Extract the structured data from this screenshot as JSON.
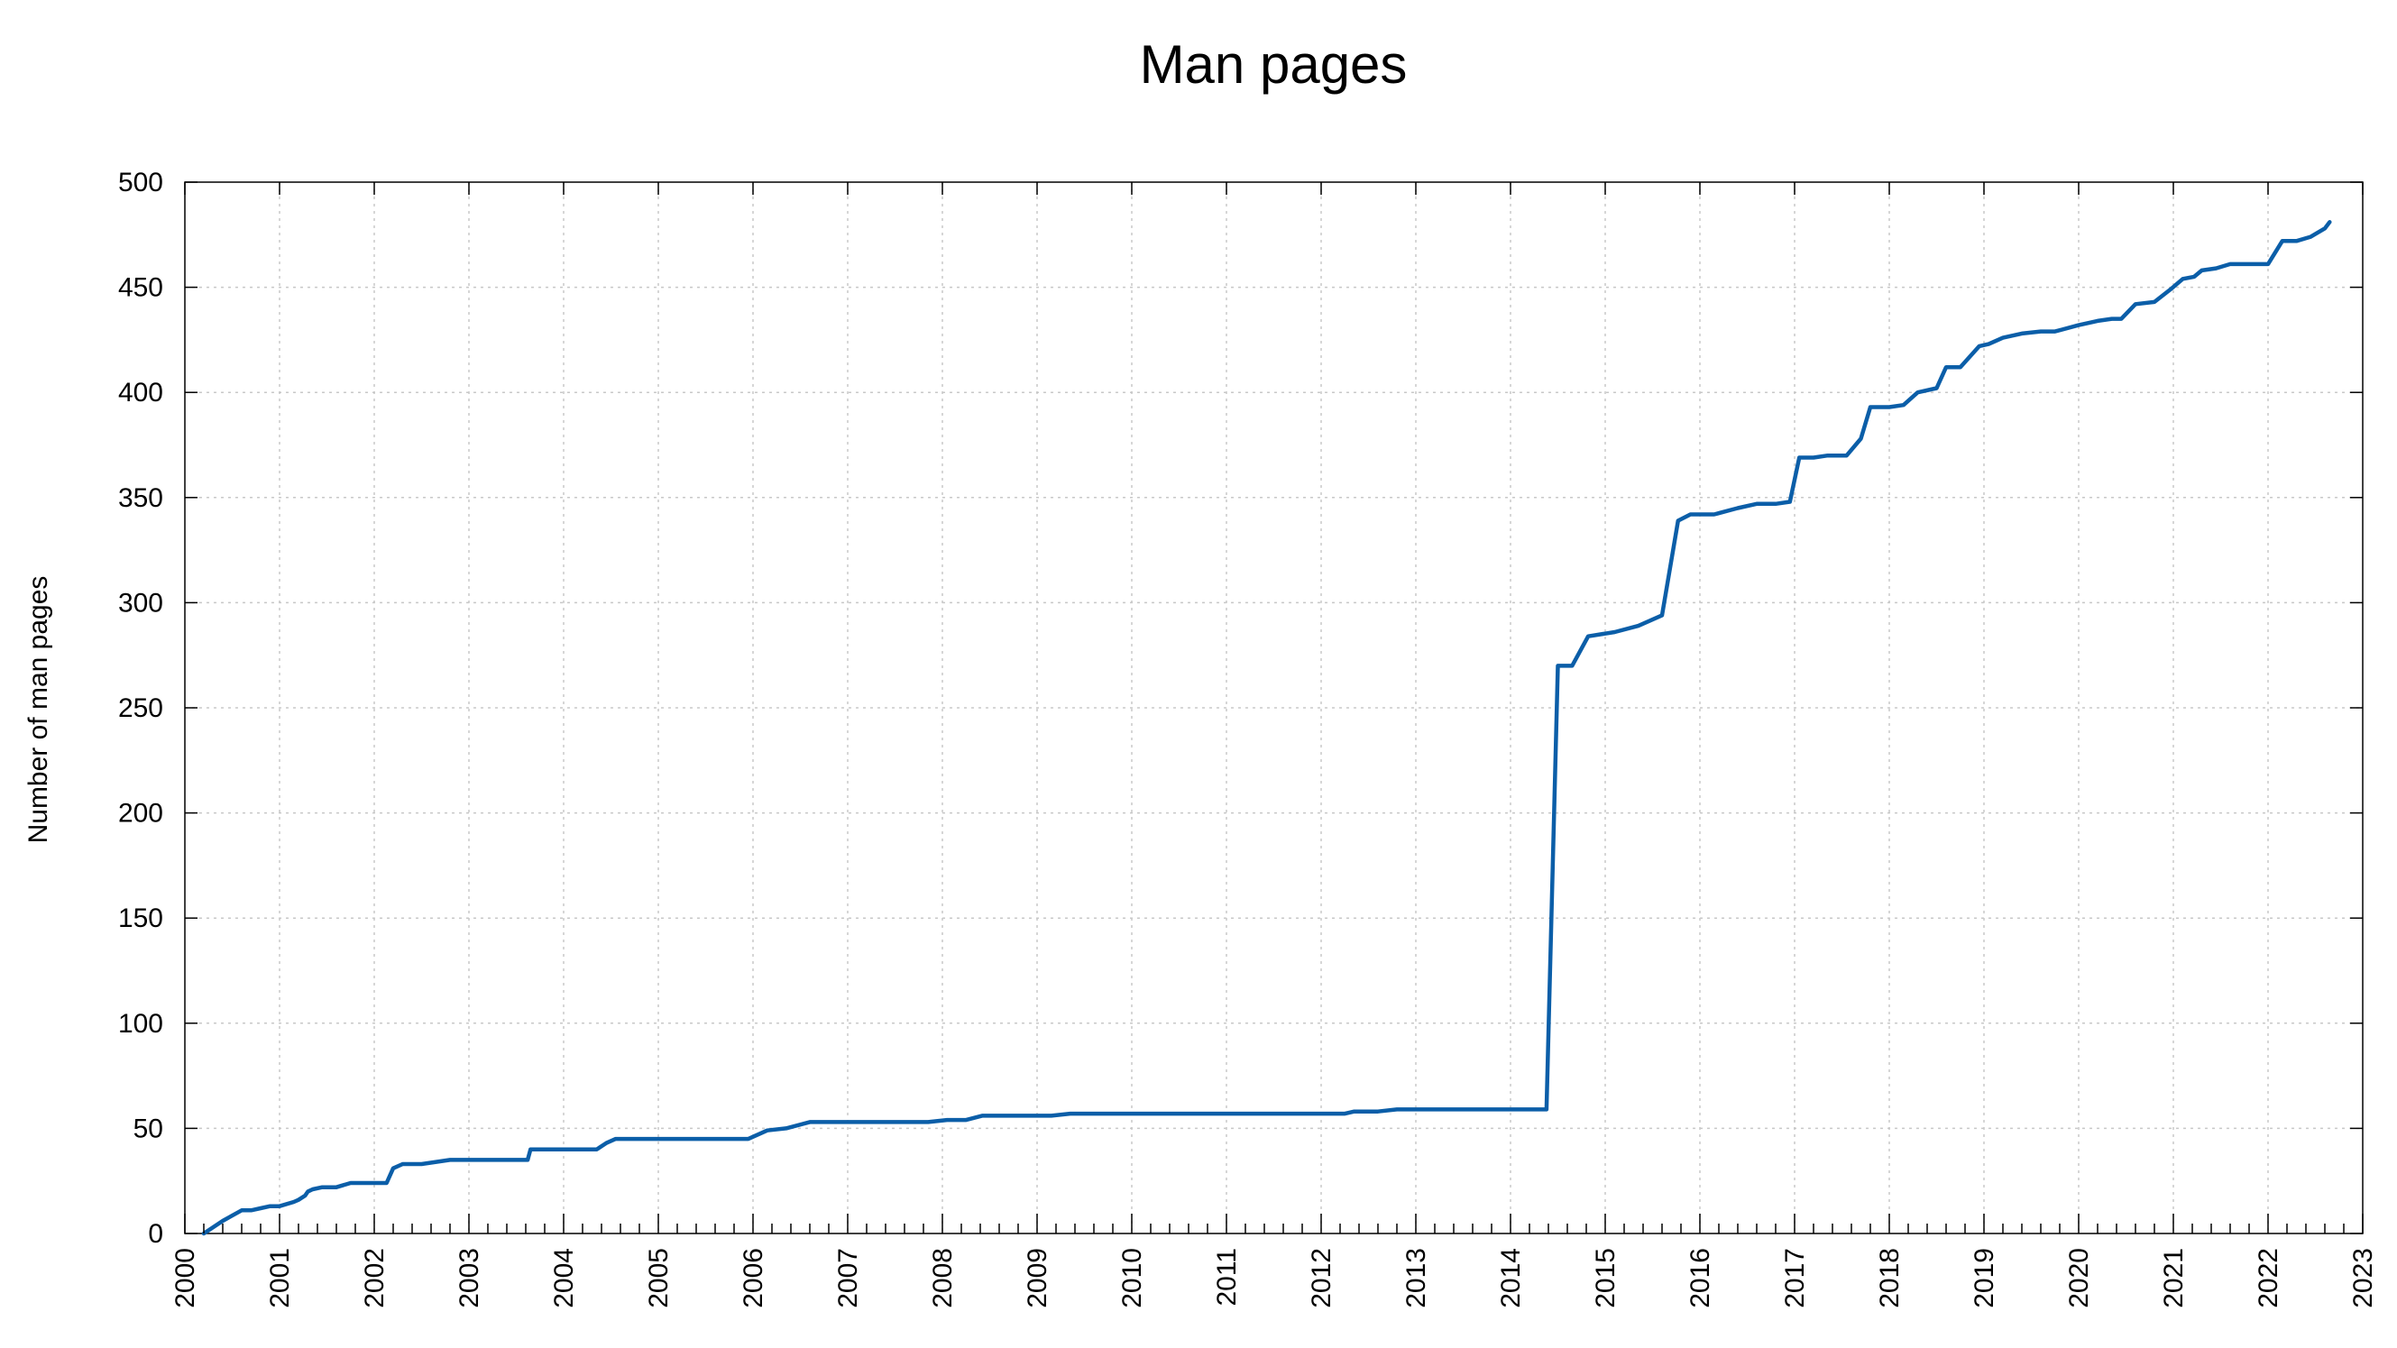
{
  "colors": {
    "series": "#0b5ea8",
    "grid": "#c8c8c8",
    "axis": "#000000"
  },
  "chart_data": {
    "type": "line",
    "title": "Man pages",
    "xlabel": "",
    "ylabel": "Number of man pages",
    "xlim": [
      2000,
      2023
    ],
    "ylim": [
      0,
      500
    ],
    "x_ticks": [
      "2000",
      "2001",
      "2002",
      "2003",
      "2004",
      "2005",
      "2006",
      "2007",
      "2008",
      "2009",
      "2010",
      "2011",
      "2012",
      "2013",
      "2014",
      "2015",
      "2016",
      "2017",
      "2018",
      "2019",
      "2020",
      "2021",
      "2022",
      "2023"
    ],
    "y_ticks": [
      "0",
      "50",
      "100",
      "150",
      "200",
      "250",
      "300",
      "350",
      "400",
      "450",
      "500"
    ],
    "minor_x_ticks_per_year": 4,
    "grid": true,
    "legend": "none",
    "series": [
      {
        "x": [
          2000.2,
          2000.4,
          2000.6,
          2000.7,
          2000.8,
          2000.9,
          2001.0,
          2001.15,
          2001.2,
          2001.27,
          2001.3,
          2001.35,
          2001.45,
          2001.6,
          2001.75,
          2002.0,
          2002.13,
          2002.2,
          2002.3,
          2002.5,
          2002.8,
          2003.0,
          2003.5,
          2003.62,
          2003.65,
          2004.0,
          2004.35,
          2004.45,
          2004.55,
          2005.0,
          2005.5,
          2005.95,
          2006.15,
          2006.35,
          2006.6,
          2007.0,
          2007.5,
          2007.85,
          2008.05,
          2008.25,
          2008.42,
          2009.0,
          2009.15,
          2009.35,
          2009.6,
          2010.0,
          2011.0,
          2011.5,
          2012.0,
          2012.25,
          2012.35,
          2012.6,
          2012.8,
          2013.5,
          2014.0,
          2014.38,
          2014.5,
          2014.65,
          2014.82,
          2015.1,
          2015.35,
          2015.6,
          2015.77,
          2015.9,
          2016.15,
          2016.4,
          2016.6,
          2016.8,
          2016.95,
          2017.05,
          2017.2,
          2017.35,
          2017.55,
          2017.7,
          2017.8,
          2018.0,
          2018.15,
          2018.3,
          2018.5,
          2018.6,
          2018.75,
          2018.95,
          2019.05,
          2019.2,
          2019.4,
          2019.6,
          2019.75,
          2020.0,
          2020.2,
          2020.35,
          2020.45,
          2020.6,
          2020.8,
          2020.97,
          2021.1,
          2021.22,
          2021.3,
          2021.45,
          2021.6,
          2021.8,
          2022.0,
          2022.15,
          2022.3,
          2022.45,
          2022.6,
          2022.65
        ],
        "y": [
          0,
          6,
          11,
          11,
          12,
          13,
          13,
          15,
          16,
          18,
          20,
          21,
          22,
          22,
          24,
          24,
          24,
          31,
          33,
          33,
          35,
          35,
          35,
          35,
          40,
          40,
          40,
          43,
          45,
          45,
          45,
          45,
          49,
          50,
          53,
          53,
          53,
          53,
          54,
          54,
          56,
          56,
          56,
          57,
          57,
          57,
          57,
          57,
          57,
          57,
          58,
          58,
          59,
          59,
          59,
          59,
          270,
          270,
          284,
          286,
          289,
          294,
          339,
          342,
          342,
          345,
          347,
          347,
          348,
          369,
          369,
          370,
          370,
          378,
          393,
          393,
          394,
          400,
          402,
          412,
          412,
          422,
          423,
          426,
          428,
          429,
          429,
          432,
          434,
          435,
          435,
          442,
          443,
          449,
          454,
          455,
          458,
          459,
          461,
          461,
          461,
          472,
          472,
          474,
          478,
          481
        ]
      }
    ]
  }
}
